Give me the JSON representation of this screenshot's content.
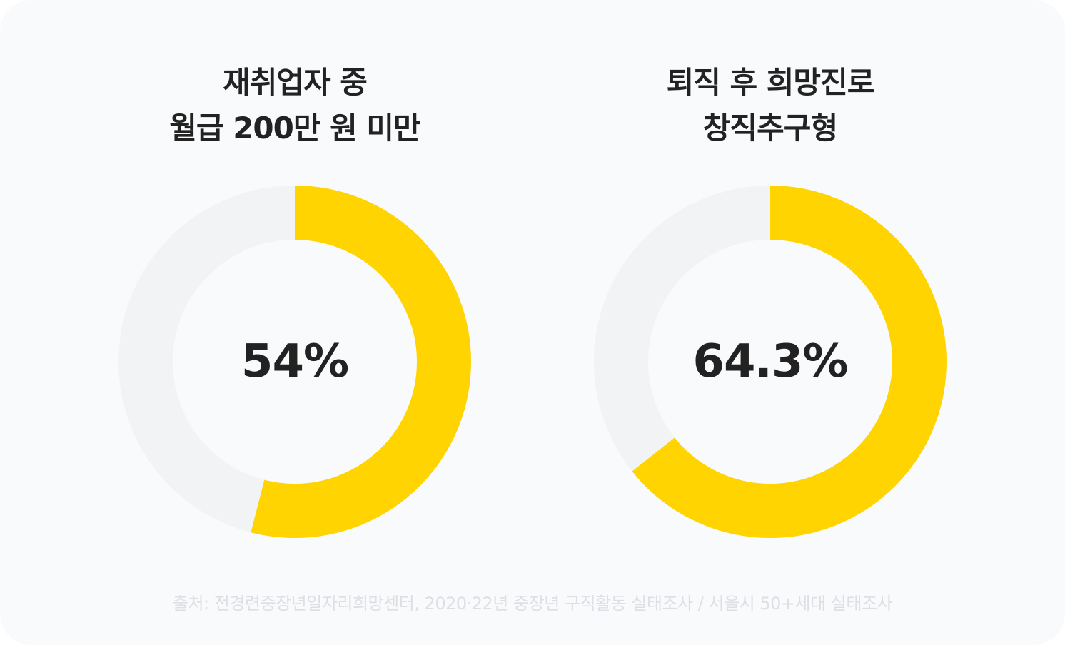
{
  "colors": {
    "accent": "#FFD400",
    "track": "#F1F3F5",
    "text": "#222222",
    "source_text": "#DCDFE3",
    "background": "#F9FAFB"
  },
  "chart_data": [
    {
      "type": "pie",
      "title_lines": [
        "재취업자 중",
        "월급 200만 원 미만"
      ],
      "value": 54,
      "value_label": "54%",
      "max": 100
    },
    {
      "type": "pie",
      "title_lines": [
        "퇴직 후 희망진로",
        "창직추구형"
      ],
      "value": 64.3,
      "value_label": "64.3%",
      "max": 100
    }
  ],
  "source": "출처: 전경련중장년일자리희망센터, 2020·22년 중장년 구직활동 실태조사 / 서울시 50+세대 실태조사"
}
